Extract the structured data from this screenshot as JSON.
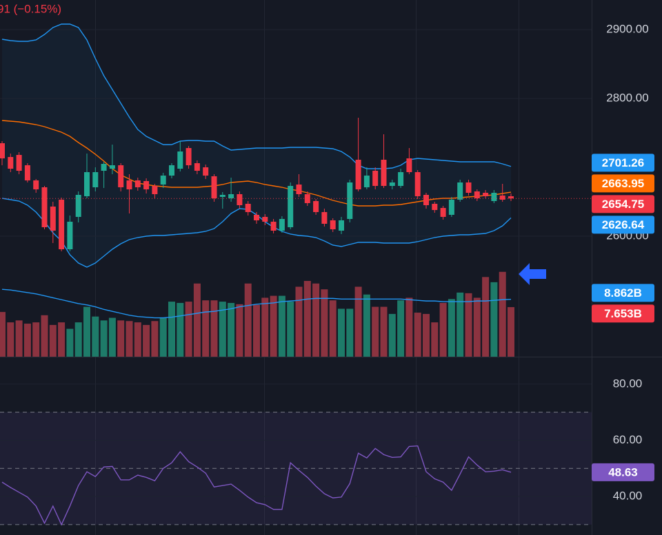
{
  "chart_data": [
    {
      "type": "candlestick",
      "title": "91 (−0.15%)",
      "up_color": "#22ab94",
      "down_color": "#f23645",
      "open": [
        2735,
        2715,
        2718,
        2703,
        2681,
        2671,
        2643,
        2653,
        2581,
        2628,
        2658,
        2671,
        2695,
        2698,
        2703,
        2681,
        2681,
        2680,
        2673,
        2675,
        2688,
        2698,
        2728,
        2706,
        2700,
        2687,
        2657,
        2655,
        2661,
        2647,
        2631,
        2628,
        2621,
        2608,
        2613,
        2675,
        2661,
        2651,
        2635,
        2623,
        2608,
        2625,
        2711,
        2671,
        2695,
        2711,
        2673,
        2673,
        2713,
        2693,
        2660,
        2647,
        2641,
        2631,
        2653,
        2678,
        2665,
        2663,
        2651,
        2659,
        2658
      ],
      "high": [
        2738,
        2720,
        2722,
        2706,
        2683,
        2673,
        2650,
        2656,
        2630,
        2665,
        2720,
        2700,
        2708,
        2733,
        2706,
        2690,
        2685,
        2684,
        2676,
        2692,
        2706,
        2738,
        2731,
        2710,
        2704,
        2690,
        2664,
        2685,
        2665,
        2651,
        2635,
        2632,
        2625,
        2629,
        2678,
        2690,
        2665,
        2654,
        2640,
        2626,
        2628,
        2682,
        2772,
        2700,
        2700,
        2748,
        2682,
        2698,
        2728,
        2696,
        2663,
        2650,
        2644,
        2657,
        2682,
        2682,
        2668,
        2667,
        2667,
        2676,
        2662
      ],
      "low": [
        2703,
        2693,
        2690,
        2678,
        2663,
        2610,
        2590,
        2578,
        2578,
        2620,
        2655,
        2665,
        2670,
        2690,
        2665,
        2633,
        2666,
        2662,
        2655,
        2670,
        2684,
        2694,
        2698,
        2690,
        2683,
        2650,
        2640,
        2650,
        2640,
        2630,
        2618,
        2616,
        2604,
        2605,
        2610,
        2657,
        2644,
        2631,
        2614,
        2606,
        2603,
        2620,
        2665,
        2668,
        2668,
        2670,
        2668,
        2670,
        2690,
        2654,
        2640,
        2634,
        2624,
        2628,
        2650,
        2659,
        2651,
        2655,
        2648,
        2650,
        2651
      ],
      "close": [
        2713,
        2698,
        2695,
        2681,
        2668,
        2613,
        2608,
        2581,
        2621,
        2660,
        2693,
        2693,
        2705,
        2703,
        2671,
        2668,
        2671,
        2668,
        2661,
        2688,
        2703,
        2723,
        2703,
        2695,
        2688,
        2655,
        2660,
        2661,
        2645,
        2635,
        2623,
        2621,
        2608,
        2625,
        2673,
        2661,
        2648,
        2635,
        2618,
        2610,
        2623,
        2678,
        2668,
        2688,
        2673,
        2673,
        2678,
        2693,
        2693,
        2658,
        2645,
        2638,
        2628,
        2653,
        2678,
        2663,
        2655,
        2658,
        2663,
        2653,
        2654.75
      ],
      "bands": {
        "color": "#2196f3",
        "middle_color": "#ff6d00",
        "upper": [
          2886,
          2884,
          2883,
          2883,
          2885,
          2893,
          2903,
          2908,
          2908,
          2903,
          2885,
          2858,
          2833,
          2813,
          2793,
          2773,
          2755,
          2745,
          2739,
          2733,
          2733,
          2738,
          2739,
          2739,
          2738,
          2738,
          2731,
          2725,
          2726,
          2727,
          2728,
          2728,
          2728,
          2728,
          2729,
          2729,
          2729,
          2729,
          2728,
          2727,
          2723,
          2715,
          2703,
          2698,
          2698,
          2698,
          2699,
          2703,
          2711,
          2713,
          2712,
          2711,
          2710,
          2709,
          2708,
          2708,
          2708,
          2708,
          2708,
          2705,
          2701.26
        ],
        "middle": [
          2768,
          2767,
          2766,
          2764,
          2762,
          2759,
          2755,
          2751,
          2745,
          2736,
          2728,
          2719,
          2709,
          2698,
          2689,
          2683,
          2677,
          2675,
          2673,
          2672,
          2671,
          2671,
          2671,
          2671,
          2672,
          2673,
          2675,
          2678,
          2679,
          2680,
          2678,
          2675,
          2673,
          2671,
          2668,
          2666,
          2663,
          2660,
          2656,
          2652,
          2649,
          2646,
          2644,
          2644,
          2644,
          2645,
          2645,
          2646,
          2648,
          2650,
          2652,
          2654,
          2655,
          2655,
          2656,
          2657,
          2658,
          2659,
          2660,
          2662,
          2663.95
        ],
        "lower": [
          2655,
          2653,
          2651,
          2645,
          2635,
          2621,
          2605,
          2593,
          2573,
          2561,
          2555,
          2561,
          2571,
          2581,
          2589,
          2595,
          2598,
          2600,
          2601,
          2601,
          2602,
          2603,
          2604,
          2605,
          2607,
          2611,
          2621,
          2633,
          2640,
          2639,
          2631,
          2621,
          2613,
          2607,
          2603,
          2601,
          2600,
          2598,
          2593,
          2587,
          2585,
          2588,
          2591,
          2591,
          2591,
          2590,
          2590,
          2590,
          2590,
          2592,
          2595,
          2598,
          2600,
          2601,
          2602,
          2602,
          2603,
          2604,
          2608,
          2615,
          2626.64
        ]
      },
      "ylim": [
        2425,
        2943
      ],
      "yticks": [
        {
          "value": 2900,
          "label": "2900.00"
        },
        {
          "value": 2800,
          "label": "2800.00"
        },
        {
          "value": 2600,
          "label": "2600.00"
        }
      ],
      "last_labels": [
        {
          "value": 2701.26,
          "label": "2701.26",
          "color": "#2196f3"
        },
        {
          "value": 2663.95,
          "label": "2663.95",
          "color": "#ff6d00"
        },
        {
          "value": 2654.75,
          "label": "2654.75",
          "color": "#f23645"
        },
        {
          "value": 2626.64,
          "label": "2626.64",
          "color": "#2196f3"
        }
      ]
    },
    {
      "type": "bar",
      "up_color": "#1e7b69",
      "down_color": "#8c3340",
      "values": [
        6.9,
        5.3,
        5.6,
        5.1,
        5.3,
        6.4,
        4.9,
        5.3,
        4.3,
        5.3,
        7.7,
        6.2,
        5.6,
        6.0,
        5.6,
        5.5,
        5.3,
        4.9,
        5.5,
        6.0,
        8.5,
        8.3,
        8.5,
        11.3,
        8.7,
        8.7,
        8.5,
        8.3,
        8.1,
        11.3,
        8.0,
        9.1,
        9.4,
        9.4,
        8.5,
        10.8,
        11.7,
        11.3,
        10.4,
        8.7,
        7.4,
        7.4,
        10.8,
        9.6,
        7.7,
        7.7,
        6.6,
        8.7,
        9.1,
        6.8,
        6.6,
        5.3,
        8.3,
        8.9,
        9.9,
        9.8,
        9.1,
        12.3,
        11.5,
        13.1,
        7.653
      ],
      "ma": [
        10.4,
        10.3,
        10.1,
        9.9,
        9.7,
        9.4,
        9.1,
        8.8,
        8.5,
        8.2,
        8.0,
        7.7,
        7.3,
        7.0,
        6.7,
        6.4,
        6.2,
        6.1,
        6.0,
        6.0,
        6.1,
        6.3,
        6.5,
        6.7,
        6.9,
        7.0,
        7.2,
        7.4,
        7.7,
        7.9,
        8.1,
        8.2,
        8.3,
        8.5,
        8.6,
        8.7,
        8.9,
        9.0,
        9.0,
        9.0,
        8.9,
        8.9,
        8.9,
        8.9,
        8.9,
        8.9,
        8.9,
        8.9,
        8.8,
        8.7,
        8.6,
        8.6,
        8.5,
        8.5,
        8.5,
        8.5,
        8.6,
        8.6,
        8.7,
        8.8,
        8.862
      ],
      "ma_color": "#2196f3",
      "ylim": [
        0,
        13.4
      ],
      "last_labels": [
        {
          "value": 8.862,
          "label": "8.862B",
          "color": "#2196f3"
        },
        {
          "value": 7.653,
          "label": "7.653B",
          "color": "#f23645"
        }
      ]
    },
    {
      "type": "line",
      "color": "#7e57c2",
      "values": [
        45.1,
        43.2,
        41.5,
        39.8,
        36.6,
        30.5,
        36.6,
        30.0,
        36.6,
        43.9,
        48.8,
        47.1,
        50.5,
        50.7,
        45.9,
        45.9,
        47.6,
        46.8,
        45.6,
        50.0,
        52.0,
        55.9,
        52.4,
        50.5,
        48.3,
        43.4,
        43.9,
        44.4,
        42.2,
        39.8,
        37.8,
        37.1,
        35.4,
        35.4,
        52.0,
        49.3,
        46.8,
        43.7,
        41.0,
        39.5,
        39.8,
        44.6,
        55.4,
        53.7,
        57.1,
        54.9,
        53.9,
        54.1,
        57.8,
        58.0,
        48.8,
        46.3,
        45.1,
        42.2,
        48.0,
        54.1,
        51.2,
        48.8,
        49.0,
        49.5,
        48.63
      ],
      "ylim": [
        26.3,
        89.5
      ],
      "yticks": [
        {
          "value": 80,
          "label": "80.00"
        },
        {
          "value": 60,
          "label": "60.00"
        },
        {
          "value": 40,
          "label": "40.00"
        }
      ],
      "levels": [
        30,
        50,
        70
      ],
      "last_labels": [
        {
          "value": 48.63,
          "label": "48.63",
          "color": "#7e57c2"
        }
      ]
    }
  ]
}
